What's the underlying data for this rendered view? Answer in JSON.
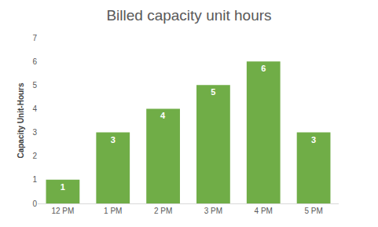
{
  "chart_data": {
    "type": "bar",
    "title": "Billed capacity unit hours",
    "ylabel": "Capacity Unit-Hours",
    "categories": [
      "12 PM",
      "1 PM",
      "2 PM",
      "3 PM",
      "4 PM",
      "5 PM"
    ],
    "values": [
      1,
      3,
      4,
      5,
      6,
      3
    ],
    "color": "#70ad47",
    "ylim": [
      0,
      7
    ],
    "yticks": [
      0,
      1,
      2,
      3,
      4,
      5,
      6,
      7
    ],
    "grid": false,
    "data_labels": true
  }
}
